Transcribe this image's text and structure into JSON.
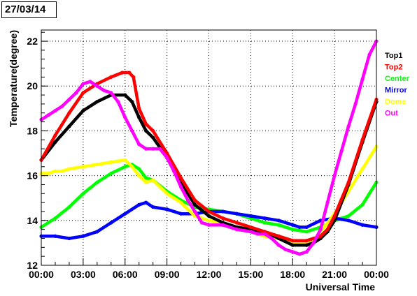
{
  "title": "27/03/14",
  "chart_data": {
    "type": "scatter",
    "title": "27/03/14",
    "xlabel": "Universal Time",
    "ylabel": "Temperature(degree)",
    "xlim": [
      0,
      24
    ],
    "ylim": [
      12,
      22.5
    ],
    "x_ticks": [
      "00:00",
      "03:00",
      "06:00",
      "09:00",
      "12:00",
      "15:00",
      "18:00",
      "21:00",
      "00:00"
    ],
    "y_ticks": [
      12,
      14,
      16,
      18,
      20,
      22
    ],
    "grid": true,
    "legend_position": "right",
    "series": [
      {
        "name": "Top1",
        "color": "#000000",
        "x": [
          0,
          1,
          2,
          3,
          4,
          5,
          6,
          6.5,
          7,
          7.5,
          8,
          9,
          10,
          11,
          12,
          13,
          14,
          15,
          16,
          17,
          18,
          19,
          19.5,
          20,
          20.5,
          21,
          22,
          23,
          24
        ],
        "y": [
          16.7,
          17.5,
          18.2,
          18.9,
          19.3,
          19.6,
          19.6,
          19.3,
          18.6,
          18.0,
          17.7,
          16.8,
          15.7,
          14.7,
          14.2,
          13.9,
          13.7,
          13.6,
          13.5,
          13.2,
          12.9,
          12.9,
          13.0,
          13.2,
          13.5,
          14.0,
          15.6,
          17.5,
          19.3
        ]
      },
      {
        "name": "Top2",
        "color": "#ff0000",
        "x": [
          0,
          1,
          2,
          3,
          4,
          5,
          5.8,
          6.3,
          6.6,
          7,
          7.5,
          8,
          9,
          10,
          11,
          12,
          13,
          14,
          15,
          16,
          17,
          18,
          19,
          19.5,
          20,
          20.5,
          21,
          22,
          23,
          24
        ],
        "y": [
          16.7,
          17.8,
          18.8,
          19.7,
          20.1,
          20.4,
          20.6,
          20.6,
          20.4,
          19.0,
          18.3,
          18.0,
          17.0,
          15.9,
          14.9,
          14.4,
          14.1,
          13.9,
          13.7,
          13.5,
          13.3,
          13.1,
          13.1,
          13.2,
          13.3,
          13.6,
          14.2,
          15.7,
          17.6,
          19.4
        ]
      },
      {
        "name": "Center",
        "color": "#00ff00",
        "x": [
          0,
          1,
          2,
          3,
          4,
          5,
          6,
          6.5,
          7,
          7.5,
          8,
          9,
          10,
          11,
          12,
          13,
          14,
          15,
          16,
          17,
          18,
          19,
          20,
          21,
          22,
          23,
          24
        ],
        "y": [
          13.7,
          14.1,
          14.6,
          15.2,
          15.7,
          16.1,
          16.4,
          16.5,
          16.3,
          15.9,
          15.8,
          15.3,
          14.9,
          14.6,
          14.5,
          14.4,
          14.3,
          14.1,
          13.9,
          13.8,
          13.6,
          13.5,
          13.7,
          14.0,
          14.2,
          14.7,
          15.7
        ]
      },
      {
        "name": "Mirror",
        "color": "#0000ff",
        "x": [
          0,
          1,
          2,
          3,
          4,
          5,
          6,
          7,
          7.5,
          8,
          9,
          10,
          11,
          12,
          13,
          14,
          15,
          16,
          17,
          18,
          18.5,
          19,
          20,
          21,
          22,
          23,
          24
        ],
        "y": [
          13.3,
          13.3,
          13.2,
          13.3,
          13.5,
          13.9,
          14.3,
          14.7,
          14.8,
          14.6,
          14.5,
          14.3,
          14.3,
          14.4,
          14.4,
          14.3,
          14.2,
          14.1,
          14.0,
          13.8,
          13.7,
          13.7,
          14.0,
          14.1,
          14.0,
          13.8,
          13.7
        ]
      },
      {
        "name": "Dome",
        "color": "#ffff00",
        "x": [
          0,
          0.5,
          1,
          1.5,
          2,
          3,
          4,
          5,
          6,
          6.5,
          7,
          7.5,
          8,
          9,
          10,
          11,
          12,
          13,
          14,
          15,
          16,
          17,
          18,
          19,
          19.5,
          20,
          21,
          22,
          23,
          24
        ],
        "y": [
          16.1,
          16.1,
          16.2,
          16.2,
          16.3,
          16.4,
          16.5,
          16.6,
          16.7,
          16.4,
          16.0,
          15.7,
          15.8,
          15.2,
          14.8,
          14.2,
          14.0,
          13.9,
          13.7,
          13.5,
          13.3,
          13.2,
          13.0,
          13.0,
          13.1,
          13.5,
          14.3,
          15.3,
          16.3,
          17.3
        ]
      },
      {
        "name": "Out",
        "color": "#ff00ff",
        "x": [
          0,
          0.5,
          1,
          1.5,
          2,
          2.5,
          3,
          3.5,
          4,
          4.5,
          5,
          5.5,
          6,
          6.5,
          7,
          7.5,
          8,
          8.5,
          9,
          9.5,
          10,
          10.5,
          11,
          11.5,
          12,
          13,
          14,
          15,
          15.5,
          16,
          16.5,
          17,
          17.5,
          18,
          18.5,
          19,
          19.5,
          20,
          20.5,
          21,
          21.5,
          22,
          22.5,
          23,
          23.5,
          24
        ],
        "y": [
          18.5,
          18.7,
          18.9,
          19.1,
          19.4,
          19.7,
          20.1,
          20.2,
          20.0,
          19.8,
          19.7,
          19.3,
          18.6,
          18.0,
          17.4,
          17.2,
          17.2,
          17.2,
          16.8,
          16.2,
          15.5,
          14.9,
          14.4,
          13.9,
          13.8,
          13.8,
          13.6,
          13.5,
          13.4,
          13.4,
          13.2,
          12.9,
          12.7,
          12.6,
          12.5,
          12.6,
          13.0,
          13.6,
          14.8,
          16.0,
          17.1,
          18.2,
          19.2,
          20.3,
          21.4,
          22.0
        ]
      }
    ]
  }
}
